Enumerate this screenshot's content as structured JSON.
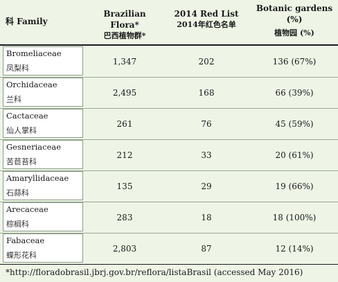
{
  "header": {
    "family": "科 Family",
    "flora_en": "Brazilian Flora*",
    "flora_cn": "巴西植物群*",
    "redlist_en": "2014 Red List",
    "redlist_cn": "2014年红色名单",
    "botanic_en": "Botanic gardens",
    "botanic_pct": "(%)",
    "botanic_cn": "植物园 (%)"
  },
  "rows": [
    {
      "family_en": "Bromeliaceae",
      "family_cn": "凤梨科",
      "flora": "1,347",
      "redlist": "202",
      "botanic": "136 (67%)"
    },
    {
      "family_en": "Orchidaceae",
      "family_cn": "兰科",
      "flora": "2,495",
      "redlist": "168",
      "botanic": "66 (39%)"
    },
    {
      "family_en": "Cactaceae",
      "family_cn": "仙人掌科",
      "flora": "261",
      "redlist": "76",
      "botanic": "45 (59%)"
    },
    {
      "family_en": "Gesneriaceae",
      "family_cn": "苦苣苔科",
      "flora": "212",
      "redlist": "33",
      "botanic": "20 (61%)"
    },
    {
      "family_en": "Amaryllidaceae",
      "family_cn": "石蒜科",
      "flora": "135",
      "redlist": "29",
      "botanic": "19 (66%)"
    },
    {
      "family_en": "Arecaceae",
      "family_cn": "棕榈科",
      "flora": "283",
      "redlist": "18",
      "botanic": "18 (100%)"
    },
    {
      "family_en": "Fabaceae",
      "family_cn": "蝶形花科",
      "flora": "2,803",
      "redlist": "87",
      "botanic": "12 (14%)"
    }
  ],
  "footnote": "*http://floradobrasil.jbrj.gov.br/reflora/listaBrasil (accessed May 2016)"
}
